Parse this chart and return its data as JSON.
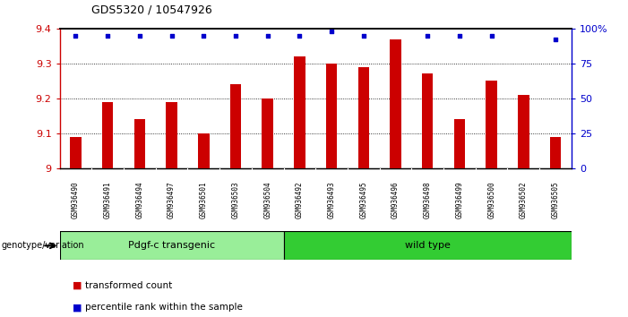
{
  "title": "GDS5320 / 10547926",
  "samples": [
    "GSM936490",
    "GSM936491",
    "GSM936494",
    "GSM936497",
    "GSM936501",
    "GSM936503",
    "GSM936504",
    "GSM936492",
    "GSM936493",
    "GSM936495",
    "GSM936496",
    "GSM936498",
    "GSM936499",
    "GSM936500",
    "GSM936502",
    "GSM936505"
  ],
  "bar_values": [
    9.09,
    9.19,
    9.14,
    9.19,
    9.1,
    9.24,
    9.2,
    9.32,
    9.3,
    9.29,
    9.37,
    9.27,
    9.14,
    9.25,
    9.21,
    9.09
  ],
  "percentile_values": [
    95,
    95,
    95,
    95,
    95,
    95,
    95,
    95,
    98,
    95,
    95,
    95,
    95,
    92
  ],
  "percentile_positions": [
    0,
    1,
    2,
    3,
    4,
    5,
    6,
    7,
    8,
    9,
    11,
    12,
    13,
    15
  ],
  "ylim_left": [
    9.0,
    9.4
  ],
  "ylim_right": [
    0,
    100
  ],
  "ytick_labels_left": [
    "9",
    "9.1",
    "9.2",
    "9.3",
    "9.4"
  ],
  "ytick_labels_right": [
    "0",
    "25",
    "50",
    "75",
    "100%"
  ],
  "bar_color": "#cc0000",
  "dot_color": "#0000cc",
  "group1_label": "Pdgf-c transgenic",
  "group2_label": "wild type",
  "group1_color": "#99ee99",
  "group2_color": "#33cc33",
  "group1_count": 7,
  "group2_count": 9,
  "xlabel_left": "genotype/variation",
  "legend_bar_label": "transformed count",
  "legend_dot_label": "percentile rank within the sample",
  "xtick_bg_color": "#c8c8c8",
  "plot_bg": "#ffffff"
}
